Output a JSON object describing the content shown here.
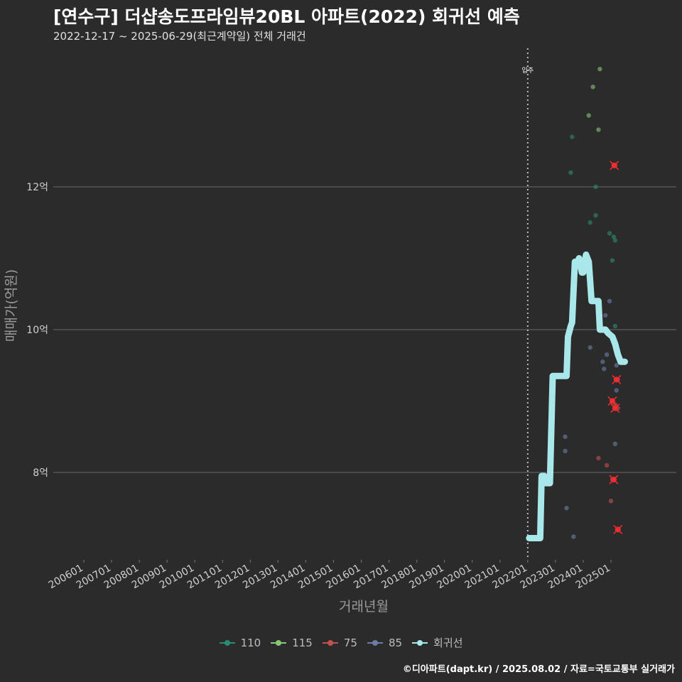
{
  "title": "[연수구] 더샵송도프라임뷰20BL 아파트(2022) 회귀선 예측",
  "subtitle": "2022-12-17 ~ 2025-06-29(최근계약일) 전체 거래건",
  "caption": "©디아파트(dapt.kr) / 2025.08.02 / 자료=국토교통부 실거래가",
  "legend": [
    {
      "label": "110",
      "color": "#2a8c73"
    },
    {
      "label": "115",
      "color": "#86c776"
    },
    {
      "label": "75",
      "color": "#c4504f"
    },
    {
      "label": "85",
      "color": "#6c7ea6"
    },
    {
      "label": "회귀선",
      "color": "#a8e8ea"
    }
  ],
  "chart_data": {
    "type": "scatter",
    "xlabel": "거래년월",
    "ylabel": "매매가(억원)",
    "x_tick_labels": [
      "200601",
      "200701",
      "200801",
      "200901",
      "201001",
      "201101",
      "201201",
      "201301",
      "201401",
      "201501",
      "201601",
      "201701",
      "201801",
      "201901",
      "202001",
      "202101",
      "202201",
      "202301",
      "202401",
      "202501"
    ],
    "x_range": [
      2005.0,
      2026.0
    ],
    "y_ticks": [
      8,
      10,
      12
    ],
    "y_tick_labels": [
      "8억",
      "10억",
      "12억"
    ],
    "ylim": [
      6.8,
      13.8
    ],
    "annotation": {
      "label": "입주",
      "x": 2022.0
    },
    "series": [
      {
        "name": "110",
        "color": "#2a8c73",
        "points": [
          [
            2023.55,
            12.2
          ],
          [
            2023.6,
            12.7
          ],
          [
            2024.25,
            11.5
          ],
          [
            2024.45,
            11.6
          ],
          [
            2024.45,
            12.0
          ],
          [
            2024.95,
            11.35
          ],
          [
            2025.1,
            11.3
          ],
          [
            2025.15,
            11.25
          ],
          [
            2025.05,
            10.97
          ],
          [
            2025.15,
            10.05
          ]
        ]
      },
      {
        "name": "115",
        "color": "#86c776",
        "points": [
          [
            2024.2,
            13.0
          ],
          [
            2024.35,
            13.4
          ],
          [
            2024.55,
            12.8
          ],
          [
            2024.6,
            13.65
          ]
        ]
      },
      {
        "name": "75",
        "color": "#c4504f",
        "points": [
          [
            2024.55,
            8.2
          ],
          [
            2024.85,
            8.1
          ],
          [
            2025.0,
            7.6
          ],
          [
            2025.05,
            7.9
          ],
          [
            2025.05,
            9.0
          ],
          [
            2025.15,
            8.95
          ],
          [
            2025.25,
            9.3
          ],
          [
            2025.25,
            8.9
          ],
          [
            2025.25,
            7.2
          ],
          [
            2025.15,
            12.3
          ],
          [
            2025.1,
            12.3
          ]
        ]
      },
      {
        "name": "85",
        "color": "#6c7ea6",
        "points": [
          [
            2023.4,
            7.5
          ],
          [
            2023.35,
            8.3
          ],
          [
            2023.35,
            8.5
          ],
          [
            2023.65,
            7.1
          ],
          [
            2024.25,
            9.75
          ],
          [
            2024.7,
            9.55
          ],
          [
            2024.75,
            9.45
          ],
          [
            2024.8,
            10.2
          ],
          [
            2024.85,
            9.65
          ],
          [
            2024.95,
            10.4
          ],
          [
            2025.15,
            8.4
          ],
          [
            2025.2,
            9.15
          ],
          [
            2025.2,
            9.5
          ]
        ]
      }
    ],
    "regression": {
      "name": "회귀선",
      "color": "#a8e8ea",
      "points": [
        [
          2022.05,
          7.08
        ],
        [
          2022.45,
          7.08
        ],
        [
          2022.5,
          7.95
        ],
        [
          2022.6,
          7.95
        ],
        [
          2022.65,
          7.85
        ],
        [
          2022.8,
          7.85
        ],
        [
          2022.9,
          9.35
        ],
        [
          2023.3,
          9.35
        ],
        [
          2023.4,
          9.35
        ],
        [
          2023.45,
          9.9
        ],
        [
          2023.55,
          10.05
        ],
        [
          2023.6,
          10.1
        ],
        [
          2023.7,
          10.95
        ],
        [
          2023.8,
          10.95
        ],
        [
          2023.85,
          11.0
        ],
        [
          2023.95,
          10.8
        ],
        [
          2024.0,
          10.8
        ],
        [
          2024.1,
          11.05
        ],
        [
          2024.2,
          10.95
        ],
        [
          2024.3,
          10.4
        ],
        [
          2024.45,
          10.4
        ],
        [
          2024.55,
          10.4
        ],
        [
          2024.6,
          10.0
        ],
        [
          2024.8,
          10.0
        ],
        [
          2024.9,
          9.95
        ],
        [
          2025.05,
          9.9
        ],
        [
          2025.15,
          9.8
        ],
        [
          2025.25,
          9.65
        ],
        [
          2025.35,
          9.55
        ],
        [
          2025.5,
          9.55
        ]
      ]
    },
    "highlight_marks": [
      [
        2025.12,
        12.3
      ],
      [
        2025.2,
        9.3
      ],
      [
        2025.05,
        9.0
      ],
      [
        2025.15,
        8.9
      ],
      [
        2025.1,
        7.9
      ],
      [
        2025.25,
        7.2
      ]
    ],
    "grid": true,
    "legend_position": "bottom"
  }
}
